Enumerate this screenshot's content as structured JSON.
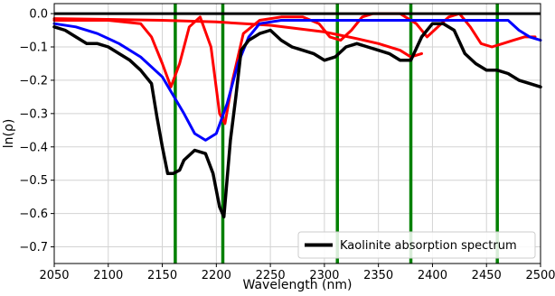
{
  "chart_data": {
    "type": "line",
    "xlabel": "Wavelength (nm)",
    "ylabel": "ln(ρ)",
    "xlim": [
      2050,
      2500
    ],
    "ylim": [
      -0.75,
      0.03
    ],
    "xticks": [
      2050,
      2100,
      2150,
      2200,
      2250,
      2300,
      2350,
      2400,
      2450,
      2500
    ],
    "yticks": [
      0.0,
      -0.1,
      -0.2,
      -0.3,
      -0.4,
      -0.5,
      -0.6,
      -0.7
    ],
    "ytick_labels": [
      "0.0",
      "−0.1",
      "−0.2",
      "−0.3",
      "−0.4",
      "−0.5",
      "−0.6",
      "−0.7"
    ],
    "grid": true,
    "legend": {
      "placement": "bottom-right",
      "entries": [
        "Kaolinite absorption spectrum"
      ]
    },
    "colors": {
      "kaolinite": "#000000",
      "blue": "#0000ff",
      "red": "#ff0000",
      "green": "#008000",
      "grid": "#d3d3d3",
      "zero": "#000000"
    },
    "vlines": [
      2162,
      2206,
      2312,
      2380,
      2460
    ],
    "series": [
      {
        "name": "Kaolinite absorption spectrum",
        "color": "#000000",
        "x": [
          2050,
          2060,
          2070,
          2080,
          2090,
          2100,
          2110,
          2120,
          2130,
          2140,
          2145,
          2150,
          2155,
          2160,
          2166,
          2170,
          2180,
          2190,
          2197,
          2203,
          2207,
          2213,
          2218,
          2223,
          2230,
          2240,
          2250,
          2260,
          2270,
          2280,
          2290,
          2300,
          2310,
          2320,
          2330,
          2340,
          2350,
          2360,
          2370,
          2380,
          2390,
          2400,
          2410,
          2420,
          2430,
          2440,
          2450,
          2460,
          2470,
          2480,
          2490,
          2500
        ],
        "y": [
          -0.04,
          -0.05,
          -0.07,
          -0.09,
          -0.09,
          -0.1,
          -0.12,
          -0.14,
          -0.17,
          -0.21,
          -0.31,
          -0.4,
          -0.48,
          -0.48,
          -0.47,
          -0.44,
          -0.41,
          -0.42,
          -0.48,
          -0.58,
          -0.61,
          -0.38,
          -0.25,
          -0.11,
          -0.08,
          -0.06,
          -0.05,
          -0.08,
          -0.1,
          -0.11,
          -0.12,
          -0.14,
          -0.13,
          -0.1,
          -0.09,
          -0.1,
          -0.11,
          -0.12,
          -0.14,
          -0.14,
          -0.07,
          -0.03,
          -0.03,
          -0.05,
          -0.12,
          -0.15,
          -0.17,
          -0.17,
          -0.18,
          -0.2,
          -0.21,
          -0.22
        ]
      },
      {
        "name": "",
        "color": "#0000ff",
        "x": [
          2050,
          2070,
          2090,
          2110,
          2130,
          2150,
          2170,
          2180,
          2190,
          2200,
          2210,
          2220,
          2230,
          2240,
          2260,
          2300,
          2350,
          2400,
          2440,
          2450,
          2460,
          2470,
          2480,
          2490,
          2500
        ],
        "y": [
          -0.03,
          -0.04,
          -0.06,
          -0.09,
          -0.13,
          -0.19,
          -0.3,
          -0.36,
          -0.38,
          -0.36,
          -0.27,
          -0.15,
          -0.07,
          -0.03,
          -0.02,
          -0.02,
          -0.02,
          -0.02,
          -0.02,
          -0.02,
          -0.02,
          -0.02,
          -0.05,
          -0.07,
          -0.08
        ]
      },
      {
        "name": "",
        "color": "#ff0000",
        "x": [
          2050,
          2100,
          2130,
          2140,
          2150,
          2158,
          2166,
          2175,
          2185,
          2195,
          2203,
          2208,
          2215,
          2225,
          2240,
          2260,
          2280,
          2295,
          2305,
          2315,
          2325,
          2335,
          2345,
          2355,
          2370,
          2385,
          2395,
          2405,
          2415,
          2425,
          2435,
          2445,
          2455,
          2465,
          2475,
          2485,
          2495
        ],
        "y": [
          -0.02,
          -0.02,
          -0.03,
          -0.07,
          -0.15,
          -0.22,
          -0.15,
          -0.04,
          -0.01,
          -0.1,
          -0.3,
          -0.33,
          -0.2,
          -0.06,
          -0.02,
          -0.01,
          -0.01,
          -0.03,
          -0.07,
          -0.08,
          -0.05,
          -0.01,
          0.0,
          0.0,
          0.0,
          -0.03,
          -0.07,
          -0.04,
          -0.01,
          0.0,
          -0.04,
          -0.09,
          -0.1,
          -0.09,
          -0.08,
          -0.07,
          -0.07
        ]
      },
      {
        "name": "",
        "color": "#ff0000",
        "x": [
          2050,
          2150,
          2200,
          2250,
          2300,
          2330,
          2350,
          2370,
          2380,
          2390
        ],
        "y": [
          -0.015,
          -0.02,
          -0.025,
          -0.035,
          -0.055,
          -0.075,
          -0.09,
          -0.11,
          -0.13,
          -0.12
        ]
      }
    ]
  }
}
